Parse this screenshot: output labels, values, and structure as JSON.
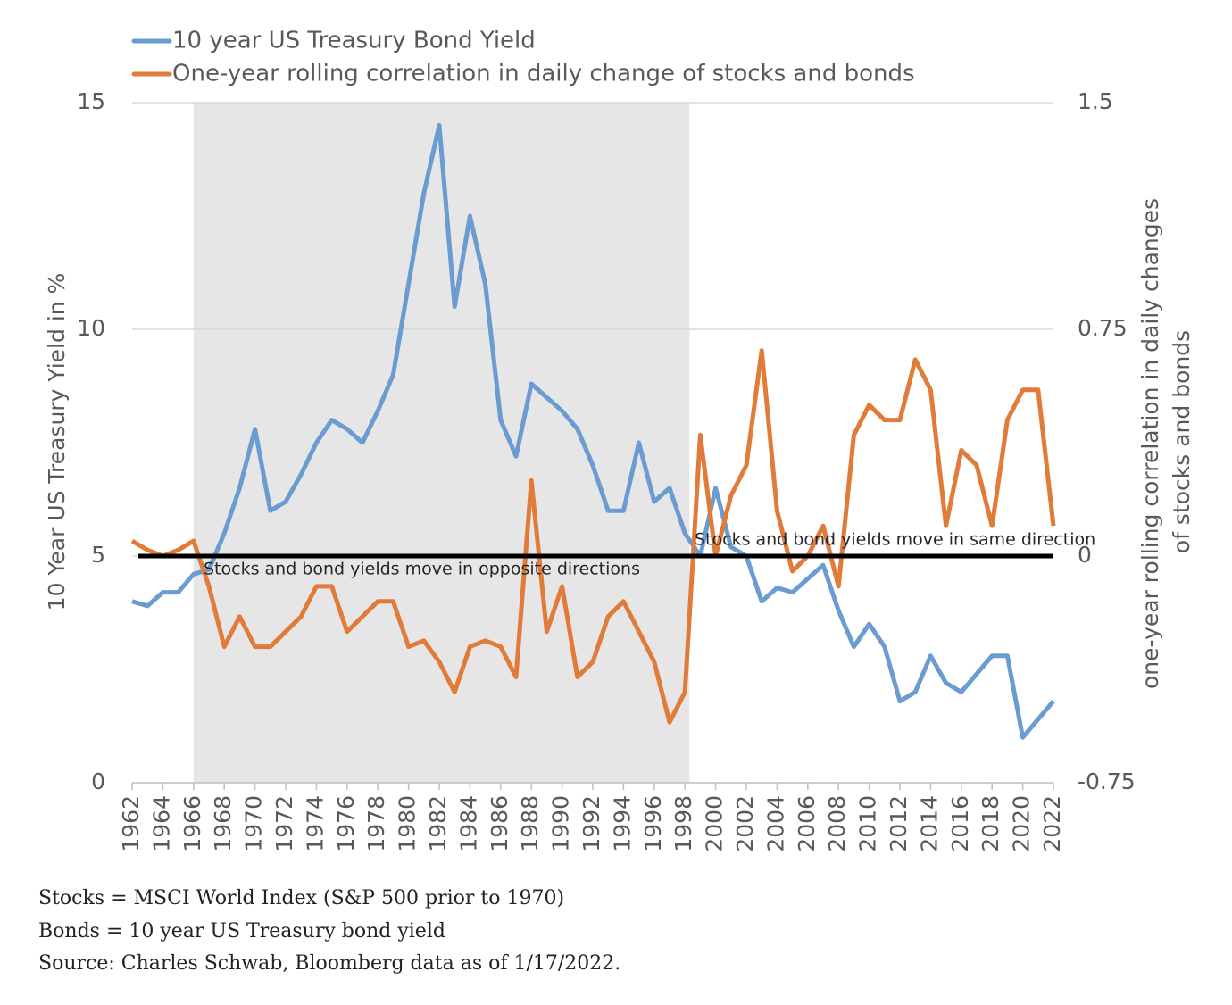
{
  "chart_data": {
    "type": "line",
    "x": [
      1962,
      1963,
      1964,
      1965,
      1966,
      1967,
      1968,
      1969,
      1970,
      1971,
      1972,
      1973,
      1974,
      1975,
      1976,
      1977,
      1978,
      1979,
      1980,
      1981,
      1982,
      1983,
      1984,
      1985,
      1986,
      1987,
      1988,
      1989,
      1990,
      1991,
      1992,
      1993,
      1994,
      1995,
      1996,
      1997,
      1998,
      1999,
      2000,
      2001,
      2002,
      2003,
      2004,
      2005,
      2006,
      2007,
      2008,
      2009,
      2010,
      2011,
      2012,
      2013,
      2014,
      2015,
      2016,
      2017,
      2018,
      2019,
      2020,
      2021,
      2022
    ],
    "series": [
      {
        "name": "10 year US Treasury Bond Yield",
        "color": "#6a9bd1",
        "axis": "y",
        "values": [
          4.0,
          3.9,
          4.2,
          4.2,
          4.6,
          4.7,
          5.5,
          6.5,
          7.8,
          6.0,
          6.2,
          6.8,
          7.5,
          8.0,
          7.8,
          7.5,
          8.2,
          9.0,
          11.0,
          13.0,
          14.5,
          10.5,
          12.5,
          11.0,
          8.0,
          7.2,
          8.8,
          8.5,
          8.2,
          7.8,
          7.0,
          6.0,
          6.0,
          7.5,
          6.2,
          6.5,
          5.5,
          5.0,
          6.5,
          5.2,
          5.0,
          4.0,
          4.3,
          4.2,
          4.5,
          4.8,
          3.8,
          3.0,
          3.5,
          3.0,
          1.8,
          2.0,
          2.8,
          2.2,
          2.0,
          2.4,
          2.8,
          2.8,
          1.0,
          1.4,
          1.8
        ]
      },
      {
        "name": "One-year rolling correlation in daily change of stocks and bonds",
        "color": "#e07b39",
        "axis": "y2",
        "values": [
          0.05,
          0.02,
          0.0,
          0.02,
          0.05,
          -0.1,
          -0.3,
          -0.2,
          -0.3,
          -0.3,
          -0.25,
          -0.2,
          -0.1,
          -0.1,
          -0.25,
          -0.2,
          -0.15,
          -0.15,
          -0.3,
          -0.28,
          -0.35,
          -0.45,
          -0.3,
          -0.28,
          -0.3,
          -0.4,
          0.25,
          -0.25,
          -0.1,
          -0.4,
          -0.35,
          -0.2,
          -0.15,
          -0.25,
          -0.35,
          -0.55,
          -0.45,
          0.4,
          0.0,
          0.2,
          0.3,
          0.68,
          0.15,
          -0.05,
          0.0,
          0.1,
          -0.1,
          0.4,
          0.5,
          0.45,
          0.45,
          0.65,
          0.55,
          0.1,
          0.35,
          0.3,
          0.1,
          0.45,
          0.55,
          0.55,
          0.1
        ]
      }
    ],
    "xlim": [
      1962,
      2022
    ],
    "xticks": [
      1962,
      1964,
      1966,
      1968,
      1970,
      1972,
      1974,
      1976,
      1978,
      1980,
      1982,
      1984,
      1986,
      1988,
      1990,
      1992,
      1994,
      1996,
      1998,
      2000,
      2002,
      2004,
      2006,
      2008,
      2010,
      2012,
      2014,
      2016,
      2018,
      2020,
      2022
    ],
    "ylim": [
      0,
      15
    ],
    "yticks": [
      0,
      5,
      10,
      15
    ],
    "y2lim": [
      -0.75,
      1.5
    ],
    "y2ticks": [
      -0.75,
      0,
      0.75,
      1.5
    ],
    "ylabel": "10 Year US Treasury Yield in %",
    "y2label": [
      "one-year rolling correlation in daily changes",
      "of stocks and bonds"
    ],
    "grid": true,
    "legend": "top-left",
    "shaded_span": [
      1966,
      1998.3
    ],
    "shade_color": "#e6e6e6",
    "reference_line_y2": 0,
    "annotations": [
      "Stocks and bond yields move in opposite directions",
      "Stocks and bond yields move in same direction"
    ]
  },
  "notes": [
    "Stocks = MSCI World Index (S&P 500 prior to 1970)",
    "Bonds = 10 year US Treasury bond yield",
    "Source: Charles Schwab, Bloomberg data as of 1/17/2022."
  ]
}
